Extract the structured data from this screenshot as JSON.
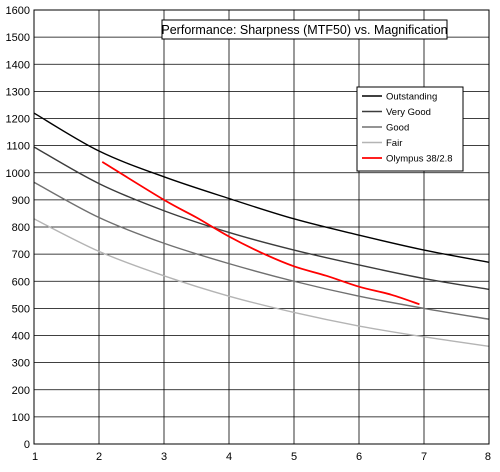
{
  "chart_data": {
    "type": "line",
    "title": "Performance: Sharpness (MTF50) vs. Magnification",
    "xlabel": "",
    "ylabel": "",
    "xlim": [
      1,
      8
    ],
    "ylim": [
      0,
      1600
    ],
    "xticks": [
      "1",
      "2",
      "3",
      "4",
      "5",
      "6",
      "7",
      "8"
    ],
    "yticks": [
      "0",
      "100",
      "200",
      "300",
      "400",
      "500",
      "600",
      "700",
      "800",
      "900",
      "1000",
      "1100",
      "1200",
      "1300",
      "1400",
      "1500",
      "1600"
    ],
    "grid": true,
    "legend_position": "right",
    "series": [
      {
        "name": "Outstanding",
        "color": "#000000",
        "x": [
          1,
          2,
          3,
          4,
          5,
          6,
          7,
          8
        ],
        "y": [
          1220,
          1080,
          985,
          905,
          830,
          770,
          715,
          670
        ]
      },
      {
        "name": "Very Good",
        "color": "#3c3c3c",
        "x": [
          1,
          2,
          3,
          4,
          5,
          6,
          7,
          8
        ],
        "y": [
          1095,
          960,
          860,
          780,
          715,
          660,
          610,
          570
        ]
      },
      {
        "name": "Good",
        "color": "#707070",
        "x": [
          1,
          2,
          3,
          4,
          5,
          6,
          7,
          8
        ],
        "y": [
          965,
          835,
          740,
          665,
          600,
          545,
          500,
          460
        ]
      },
      {
        "name": "Fair",
        "color": "#b4b4b4",
        "x": [
          1,
          2,
          3,
          4,
          5,
          6,
          7,
          8
        ],
        "y": [
          830,
          710,
          620,
          545,
          485,
          435,
          395,
          360
        ]
      },
      {
        "name": "Olympus 38/2.8",
        "color": "#ff0000",
        "x": [
          2.05,
          3,
          3.5,
          4,
          4.5,
          5,
          5.5,
          6,
          6.5,
          6.93
        ],
        "y": [
          1040,
          900,
          835,
          765,
          705,
          655,
          620,
          580,
          550,
          515
        ]
      }
    ]
  }
}
